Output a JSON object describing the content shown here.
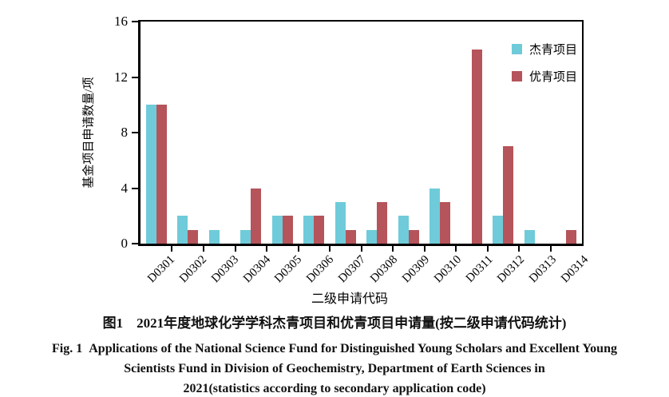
{
  "chart_data": {
    "type": "bar",
    "categories": [
      "D0301",
      "D0302",
      "D0303",
      "D0304",
      "D0305",
      "D0306",
      "D0307",
      "D0308",
      "D0309",
      "D0310",
      "D0311",
      "D0312",
      "D0313",
      "D0314"
    ],
    "series": [
      {
        "key": "jieqing",
        "name": "杰青项目",
        "color": "#6FCBD9",
        "values": [
          10,
          2,
          1,
          1,
          2,
          2,
          3,
          1,
          2,
          4,
          0,
          2,
          1,
          0
        ]
      },
      {
        "key": "youqing",
        "name": "优青项目",
        "color": "#B5545A",
        "values": [
          10,
          1,
          0,
          4,
          2,
          2,
          1,
          3,
          1,
          3,
          14,
          7,
          0,
          1
        ]
      }
    ],
    "xlabel": "二级申请代码",
    "ylabel": "基金项目申请数量/项",
    "ylim": [
      0,
      16
    ],
    "yticks": [
      0,
      4,
      8,
      12,
      16
    ],
    "legend_position": "top-right-inside",
    "grid": false,
    "axis_color": "#000000",
    "background_color": "#ffffff"
  },
  "caption": {
    "zh": "图1　2021年度地球化学学科杰青项目和优青项目申请量(按二级申请代码统计)",
    "en_line1": "Fig. 1  Applications of the National Science Fund for Distinguished Young Scholars and Excellent Young",
    "en_line2": "Scientists Fund in Division of Geochemistry, Department of Earth Sciences in",
    "en_line3": "2021(statistics according to secondary application code)"
  }
}
